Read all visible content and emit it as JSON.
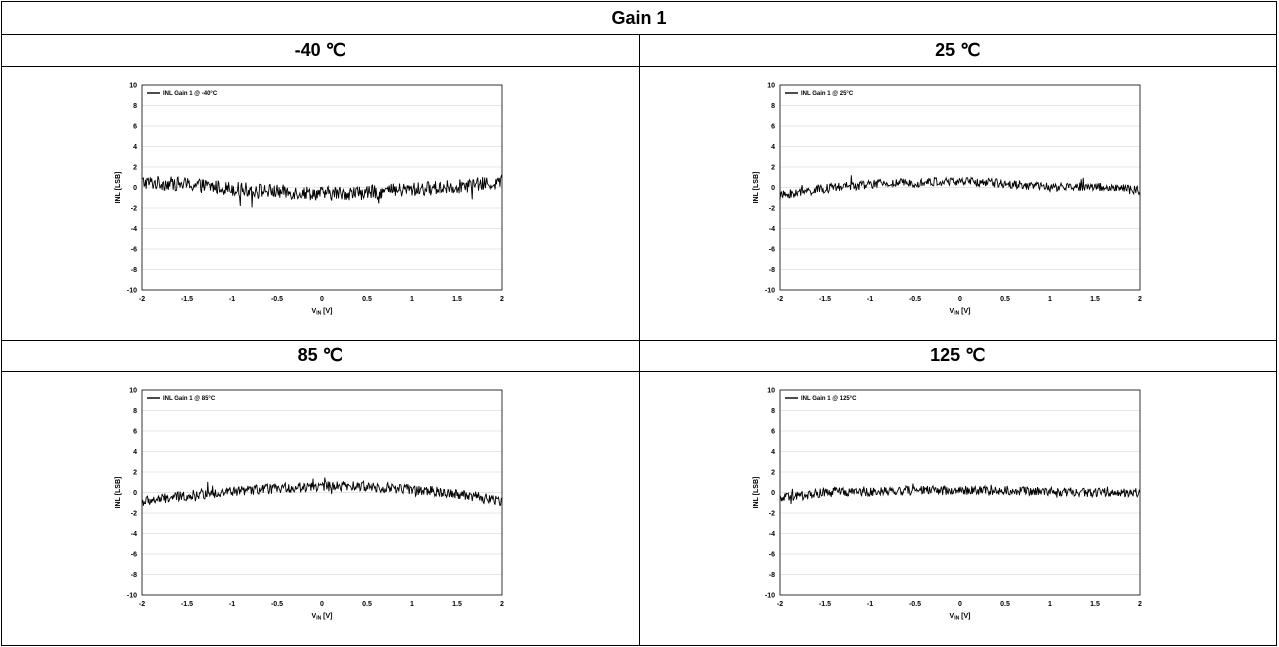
{
  "title": "Gain 1",
  "headers": [
    "-40 ℃",
    "25 ℃",
    "85 ℃",
    "125 ℃"
  ],
  "chart_data": [
    {
      "type": "line",
      "legend": "INL Gain 1 @ -40°C",
      "legend_position": "top-left",
      "xlabel_main": "V",
      "xlabel_sub": "IN",
      "xlabel_unit": " [V]",
      "ylabel": "INL [LSB]",
      "xlim": [
        -2,
        2
      ],
      "ylim": [
        -10,
        10
      ],
      "xticks": [
        "-2",
        "-1.5",
        "-1",
        "-0.5",
        "0",
        "0.5",
        "1",
        "1.5",
        "2"
      ],
      "yticks": [
        "10",
        "8",
        "6",
        "4",
        "2",
        "0",
        "-2",
        "-4",
        "-6",
        "-8",
        "-10"
      ],
      "grid": true,
      "series": [
        {
          "x": [
            -2,
            -1.5,
            -1,
            -0.5,
            0,
            0.5,
            1,
            1.5,
            2
          ],
          "y": [
            0.5,
            0.3,
            -0.1,
            -0.4,
            -0.6,
            -0.5,
            -0.2,
            0.1,
            0.5
          ],
          "noise": 0.7
        }
      ]
    },
    {
      "type": "line",
      "legend": "INL Gain 1 @ 25°C",
      "legend_position": "top-left",
      "xlabel_main": "V",
      "xlabel_sub": "IN",
      "xlabel_unit": " [V]",
      "ylabel": "INL [LSB]",
      "xlim": [
        -2,
        2
      ],
      "ylim": [
        -10,
        10
      ],
      "xticks": [
        "-2",
        "-1.5",
        "-1",
        "-0.5",
        "0",
        "0.5",
        "1",
        "1.5",
        "2"
      ],
      "yticks": [
        "10",
        "8",
        "6",
        "4",
        "2",
        "0",
        "-2",
        "-4",
        "-6",
        "-8",
        "-10"
      ],
      "grid": true,
      "series": [
        {
          "x": [
            -2,
            -1.5,
            -1,
            -0.5,
            0,
            0.5,
            1,
            1.5,
            2
          ],
          "y": [
            -0.8,
            -0.1,
            0.3,
            0.5,
            0.6,
            0.4,
            0.0,
            0.1,
            -0.3
          ],
          "noise": 0.45
        }
      ]
    },
    {
      "type": "line",
      "legend": "INL Gain 1 @ 85°C",
      "legend_position": "top-left",
      "xlabel_main": "V",
      "xlabel_sub": "IN",
      "xlabel_unit": " [V]",
      "ylabel": "INL [LSB]",
      "xlim": [
        -2,
        2
      ],
      "ylim": [
        -10,
        10
      ],
      "xticks": [
        "-2",
        "-1.5",
        "-1",
        "-0.5",
        "0",
        "0.5",
        "1",
        "1.5",
        "2"
      ],
      "yticks": [
        "10",
        "8",
        "6",
        "4",
        "2",
        "0",
        "-2",
        "-4",
        "-6",
        "-8",
        "-10"
      ],
      "grid": true,
      "series": [
        {
          "x": [
            -2,
            -1.5,
            -1,
            -0.5,
            0,
            0.5,
            1,
            1.5,
            2
          ],
          "y": [
            -0.9,
            -0.3,
            0.1,
            0.4,
            0.6,
            0.6,
            0.3,
            -0.1,
            -0.8
          ],
          "noise": 0.5
        }
      ]
    },
    {
      "type": "line",
      "legend": "INL Gain 1 @ 125°C",
      "legend_position": "top-left",
      "xlabel_main": "V",
      "xlabel_sub": "IN",
      "xlabel_unit": " [V]",
      "ylabel": "INL [LSB]",
      "xlim": [
        -2,
        2
      ],
      "ylim": [
        -10,
        10
      ],
      "xticks": [
        "-2",
        "-1.5",
        "-1",
        "-0.5",
        "0",
        "0.5",
        "1",
        "1.5",
        "2"
      ],
      "yticks": [
        "10",
        "8",
        "6",
        "4",
        "2",
        "0",
        "-2",
        "-4",
        "-6",
        "-8",
        "-10"
      ],
      "grid": true,
      "series": [
        {
          "x": [
            -2,
            -1.5,
            -1,
            -0.5,
            0,
            0.5,
            1,
            1.5,
            2
          ],
          "y": [
            -0.6,
            0.0,
            0.1,
            0.2,
            0.2,
            0.2,
            0.1,
            0.0,
            0.0
          ],
          "noise": 0.45
        }
      ]
    }
  ]
}
